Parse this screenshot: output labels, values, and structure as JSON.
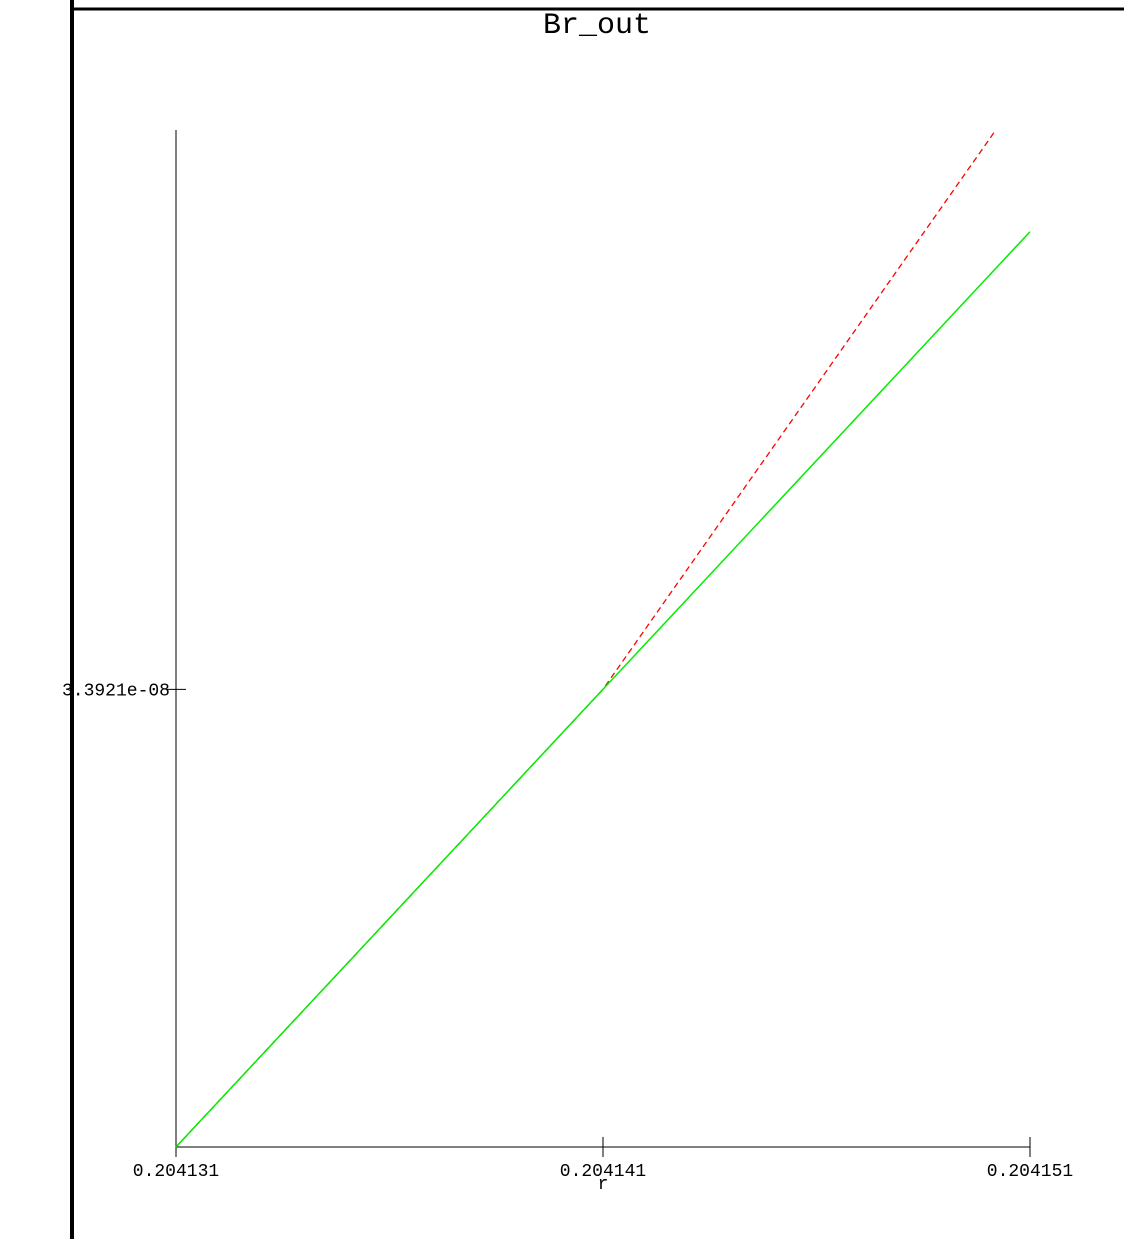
{
  "chart_data": {
    "type": "line",
    "title": "Br_out",
    "xlabel": "r",
    "ylabel": "",
    "x_ticks": [
      {
        "value": 0.204131,
        "label": "0.204131"
      },
      {
        "value": 0.204141,
        "label": "0.204141"
      },
      {
        "value": 0.204151,
        "label": "0.204151"
      }
    ],
    "y_ticks": [
      {
        "value": 3.3921e-08,
        "label": "3.3921e-08"
      }
    ],
    "xlim": [
      0.204131,
      0.204151
    ],
    "ylim": [
      3.39192e-08,
      3.39232e-08
    ],
    "grid": false,
    "series": [
      {
        "style": "dashed",
        "color": "#ff0000",
        "x": [
          0.204131,
          0.204141,
          0.2041502
        ],
        "y": [
          3.39192e-08,
          3.3921e-08,
          3.39232e-08
        ]
      },
      {
        "style": "solid",
        "color": "#00ee00",
        "x": [
          0.204131,
          0.204141,
          0.204151
        ],
        "y": [
          3.39192e-08,
          3.3921e-08,
          3.39228e-08
        ]
      }
    ]
  }
}
